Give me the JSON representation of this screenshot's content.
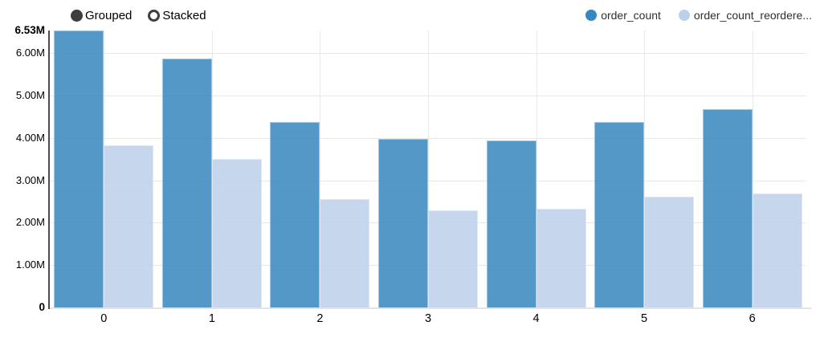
{
  "controls": {
    "options": [
      {
        "label": "Grouped",
        "selected": true
      },
      {
        "label": "Stacked",
        "selected": false
      }
    ]
  },
  "legend": {
    "items": [
      {
        "label": "order_count",
        "color": "#3787be"
      },
      {
        "label": "order_count_reordere...",
        "color": "#bdd0eb"
      }
    ]
  },
  "chart_data": {
    "type": "bar",
    "mode": "grouped",
    "title": "",
    "xlabel": "",
    "ylabel": "",
    "categories": [
      "0",
      "1",
      "2",
      "3",
      "4",
      "5",
      "6"
    ],
    "series": [
      {
        "name": "order_count",
        "color": "#3787be",
        "opacity": 0.85,
        "values": [
          6530000,
          5870000,
          4370000,
          3970000,
          3940000,
          4380000,
          4680000
        ]
      },
      {
        "name": "order_count_reordered",
        "legend_label": "order_count_reordere...",
        "color": "#bdd0eb",
        "opacity": 0.85,
        "values": [
          3820000,
          3510000,
          2560000,
          2300000,
          2320000,
          2610000,
          2690000
        ]
      }
    ],
    "ylim": [
      0,
      6530000
    ],
    "y_ticks": [
      {
        "label": "0",
        "value": 0,
        "bold": true
      },
      {
        "label": "1.00M",
        "value": 1000000,
        "bold": false
      },
      {
        "label": "2.00M",
        "value": 2000000,
        "bold": false
      },
      {
        "label": "3.00M",
        "value": 3000000,
        "bold": false
      },
      {
        "label": "4.00M",
        "value": 4000000,
        "bold": false
      },
      {
        "label": "5.00M",
        "value": 5000000,
        "bold": false
      },
      {
        "label": "6.00M",
        "value": 6000000,
        "bold": false
      },
      {
        "label": "6.53M",
        "value": 6530000,
        "bold": true
      }
    ],
    "grid": true,
    "legend_position": "top-right",
    "colors": {
      "y_axis_line": "#4d4d4d",
      "x_axis_line": "#e3e3e3",
      "gridline": "#e8e8e8",
      "radio": "#3e3e3e"
    }
  }
}
